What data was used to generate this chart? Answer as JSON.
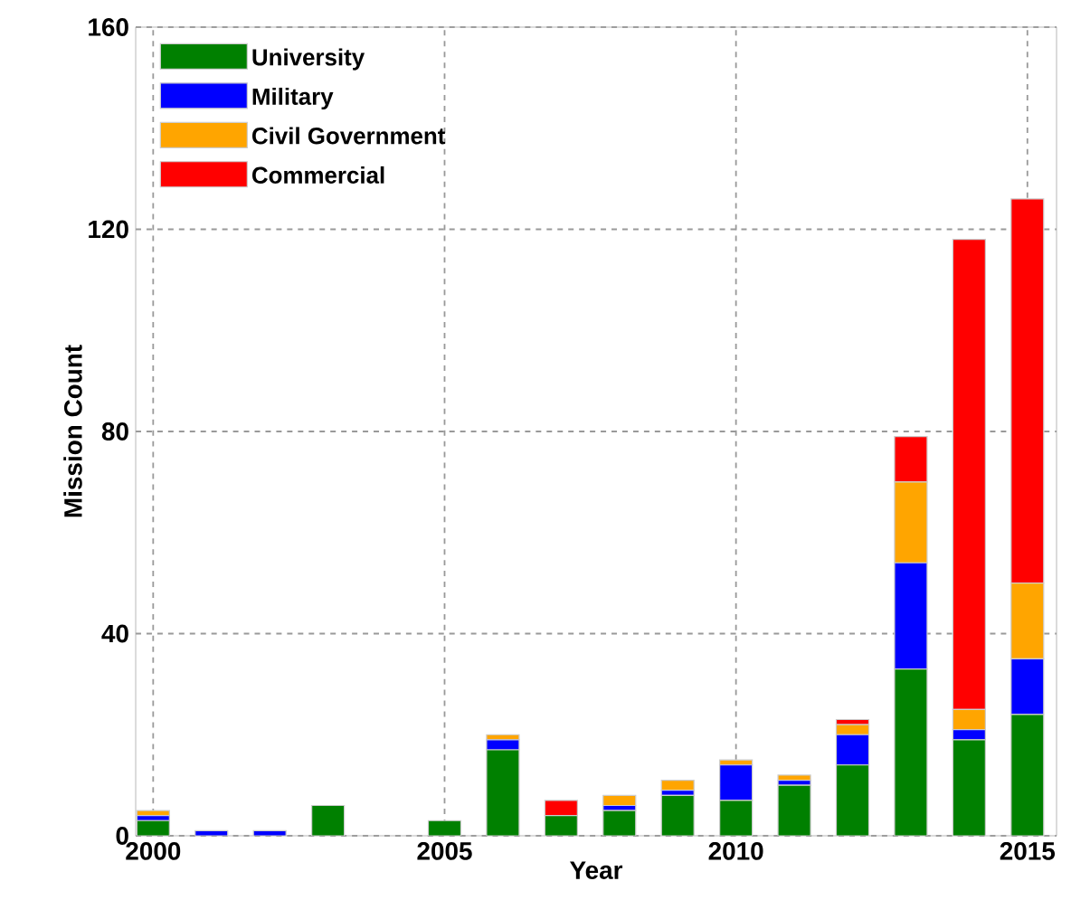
{
  "chart_data": {
    "type": "bar",
    "stacked": true,
    "xlabel": "Year",
    "ylabel": "Mission Count",
    "x": [
      2000,
      2001,
      2002,
      2003,
      2004,
      2005,
      2006,
      2007,
      2008,
      2009,
      2010,
      2011,
      2012,
      2013,
      2014,
      2015
    ],
    "xlim": [
      1999.7,
      2015.5
    ],
    "xticks": [
      2000,
      2005,
      2010,
      2015
    ],
    "ylim": [
      0,
      160
    ],
    "yticks": [
      0,
      40,
      80,
      120,
      160
    ],
    "grid": true,
    "legend": "top left",
    "series": [
      {
        "name": "University",
        "color": "#008000",
        "values": [
          3,
          0,
          0,
          6,
          0,
          3,
          17,
          4,
          5,
          8,
          7,
          10,
          14,
          33,
          19,
          24
        ]
      },
      {
        "name": "Military",
        "color": "#0000ff",
        "values": [
          1,
          1,
          1,
          0,
          0,
          0,
          2,
          0,
          1,
          1,
          7,
          1,
          6,
          21,
          2,
          11
        ]
      },
      {
        "name": "Civil Government",
        "color": "#ffa500",
        "values": [
          1,
          0,
          0,
          0,
          0,
          0,
          1,
          0,
          2,
          2,
          1,
          1,
          2,
          16,
          4,
          15
        ]
      },
      {
        "name": "Commercial",
        "color": "#ff0000",
        "values": [
          0,
          0,
          0,
          0,
          0,
          0,
          0,
          3,
          0,
          0,
          0,
          0,
          1,
          9,
          93,
          76
        ]
      }
    ]
  }
}
